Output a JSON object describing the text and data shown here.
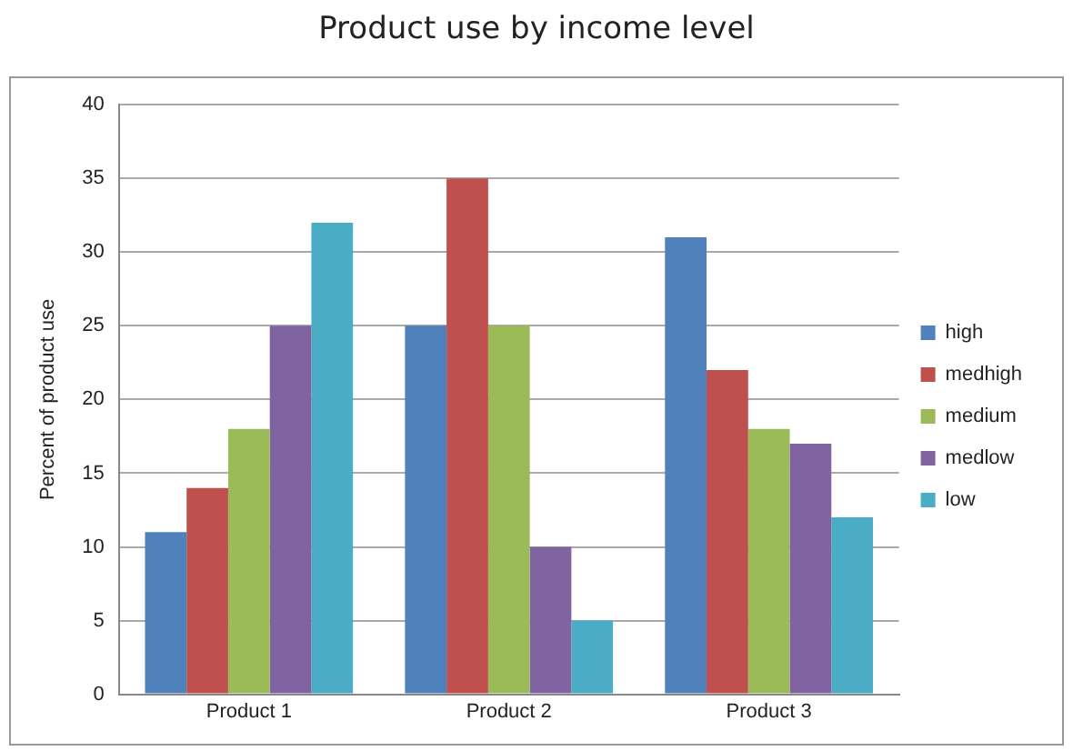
{
  "chart_data": {
    "type": "bar",
    "title": "Product use by income level",
    "ylabel": "Percent of product use",
    "categories": [
      "Product 1",
      "Product 2",
      "Product 3"
    ],
    "series": [
      {
        "name": "high",
        "color": "#4f81bd",
        "values": [
          11,
          25,
          31
        ]
      },
      {
        "name": "medhigh",
        "color": "#c0504d",
        "values": [
          14,
          35,
          22
        ]
      },
      {
        "name": "medium",
        "color": "#9bbb59",
        "values": [
          18,
          25,
          18
        ]
      },
      {
        "name": "medlow",
        "color": "#8064a2",
        "values": [
          25,
          10,
          17
        ]
      },
      {
        "name": "low",
        "color": "#4bacc6",
        "values": [
          32,
          5,
          12
        ]
      }
    ],
    "ylim": [
      0,
      40
    ],
    "yticks": [
      0,
      5,
      10,
      15,
      20,
      25,
      30,
      35,
      40
    ],
    "grid": "y",
    "legend": "right"
  }
}
